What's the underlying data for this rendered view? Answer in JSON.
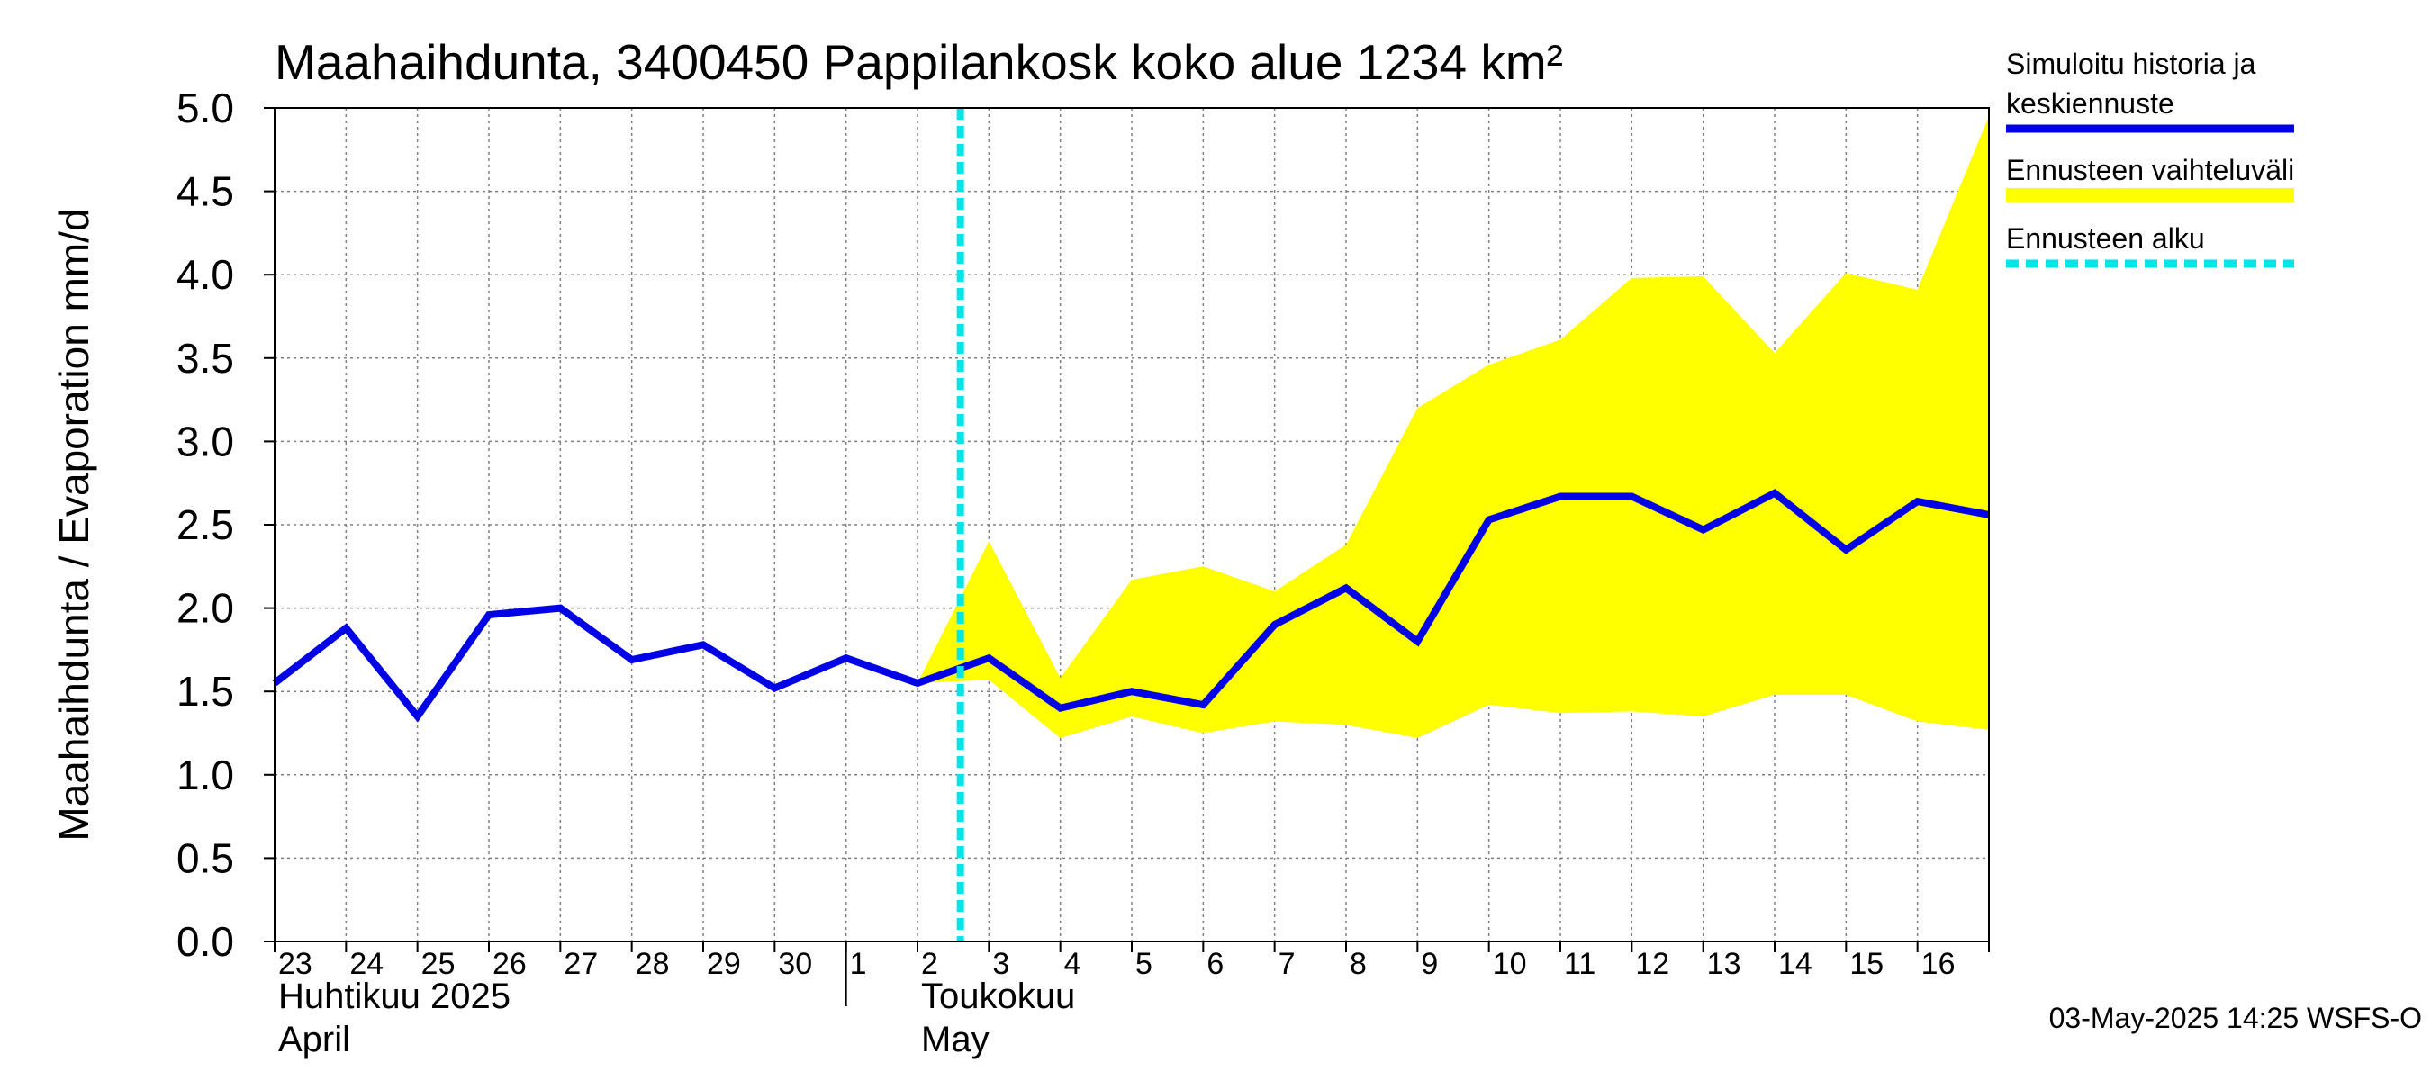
{
  "chart_data": {
    "type": "line",
    "title": "Maahaihdunta, 3400450 Pappilankosk koko alue 1234 km²",
    "ylabel": "Maahaihdunta / Evaporation   mm/d",
    "ylim": [
      0,
      5
    ],
    "yticks": [
      "0.0",
      "0.5",
      "1.0",
      "1.5",
      "2.0",
      "2.5",
      "3.0",
      "3.5",
      "4.0",
      "4.5",
      "5.0"
    ],
    "grid": true,
    "legend_placement": "right",
    "x_day_labels": [
      "23",
      "24",
      "25",
      "26",
      "27",
      "28",
      "29",
      "30",
      "1",
      "2",
      "3",
      "4",
      "5",
      "6",
      "7",
      "8",
      "9",
      "10",
      "11",
      "12",
      "13",
      "14",
      "15",
      "16"
    ],
    "month_labels": [
      {
        "line1": "Huhtikuu  2025",
        "line2": "April",
        "start_day_index": 0
      },
      {
        "line1": "Toukokuu",
        "line2": "May",
        "start_day_index": 9
      }
    ],
    "month_divider_day_index": 8,
    "x": [
      "2025-04-23",
      "2025-04-24",
      "2025-04-25",
      "2025-04-26",
      "2025-04-27",
      "2025-04-28",
      "2025-04-29",
      "2025-04-30",
      "2025-05-01",
      "2025-05-02",
      "2025-05-03",
      "2025-05-04",
      "2025-05-05",
      "2025-05-06",
      "2025-05-07",
      "2025-05-08",
      "2025-05-09",
      "2025-05-10",
      "2025-05-11",
      "2025-05-12",
      "2025-05-13",
      "2025-05-14",
      "2025-05-15",
      "2025-05-16",
      "2025-05-17"
    ],
    "series": [
      {
        "name": "Simuloitu historia ja keskiennuste",
        "color": "#0000e6",
        "values": [
          1.55,
          1.88,
          1.35,
          1.96,
          2.0,
          1.69,
          1.78,
          1.52,
          1.7,
          1.55,
          1.7,
          1.4,
          1.5,
          1.42,
          1.9,
          2.12,
          1.8,
          2.53,
          2.67,
          2.67,
          2.47,
          2.69,
          2.35,
          2.64,
          2.56
        ]
      }
    ],
    "band": {
      "name": "Ennusteen vaihteluväli",
      "color": "#ffff00",
      "x_start_index": 9,
      "upper": [
        1.55,
        2.4,
        1.58,
        2.17,
        2.25,
        2.1,
        2.38,
        3.2,
        3.46,
        3.61,
        3.98,
        3.99,
        3.53,
        4.01,
        3.91,
        4.95
      ],
      "lower": [
        1.55,
        1.57,
        1.22,
        1.35,
        1.25,
        1.32,
        1.3,
        1.22,
        1.42,
        1.37,
        1.38,
        1.35,
        1.48,
        1.48,
        1.32,
        1.27
      ]
    },
    "forecast_start": {
      "name": "Ennusteen alku",
      "color": "#00e5e5",
      "x_value": "2025-05-02 14:25"
    },
    "timestamp": "03-May-2025 14:25 WSFS-O"
  }
}
